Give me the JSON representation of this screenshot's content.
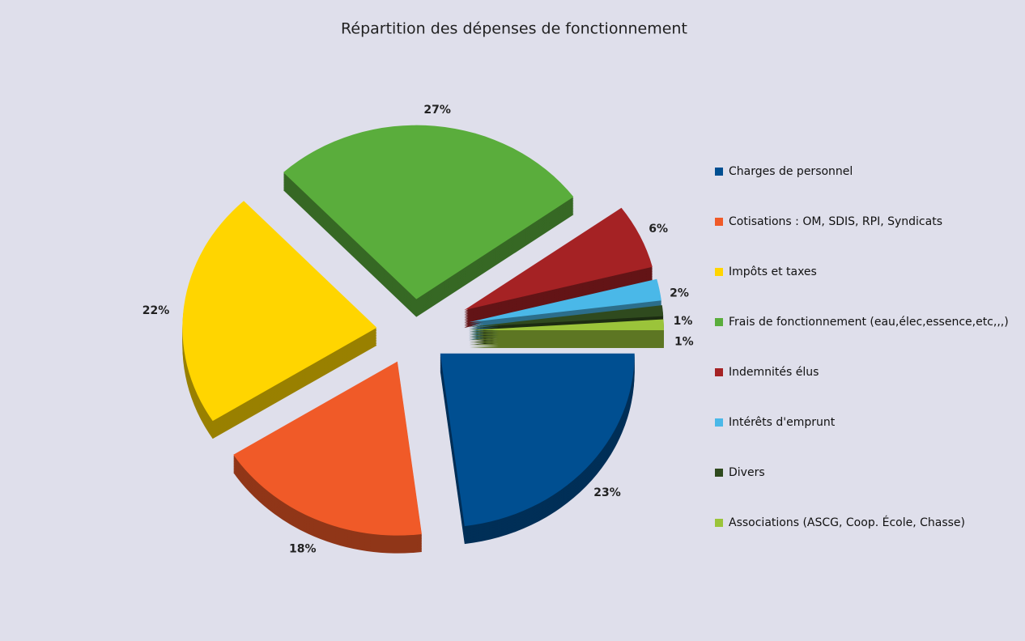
{
  "chart_data": {
    "type": "pie",
    "title": "Répartition des dépenses de fonctionnement",
    "categories": [
      "Charges de personnel",
      "Cotisations : OM, SDIS, RPI, Syndicats",
      "Impôts et taxes",
      "Frais de fonctionnement (eau,élec,essence,etc,,,)",
      "Indemnités élus",
      "Intérêts d'emprunt",
      "Divers",
      "Associations (ASCG, Coop. École, Chasse)"
    ],
    "values": [
      23,
      18,
      22,
      27,
      6,
      2,
      1,
      1
    ],
    "value_labels": [
      "23%",
      "18%",
      "22%",
      "27%",
      "6%",
      "2%",
      "1%",
      "1%"
    ],
    "colors": [
      "#004f91",
      "#f05a28",
      "#ffd500",
      "#5aad3c",
      "#a52224",
      "#4ab8e8",
      "#2f4a1e",
      "#9bc43a"
    ],
    "legend": "right"
  }
}
